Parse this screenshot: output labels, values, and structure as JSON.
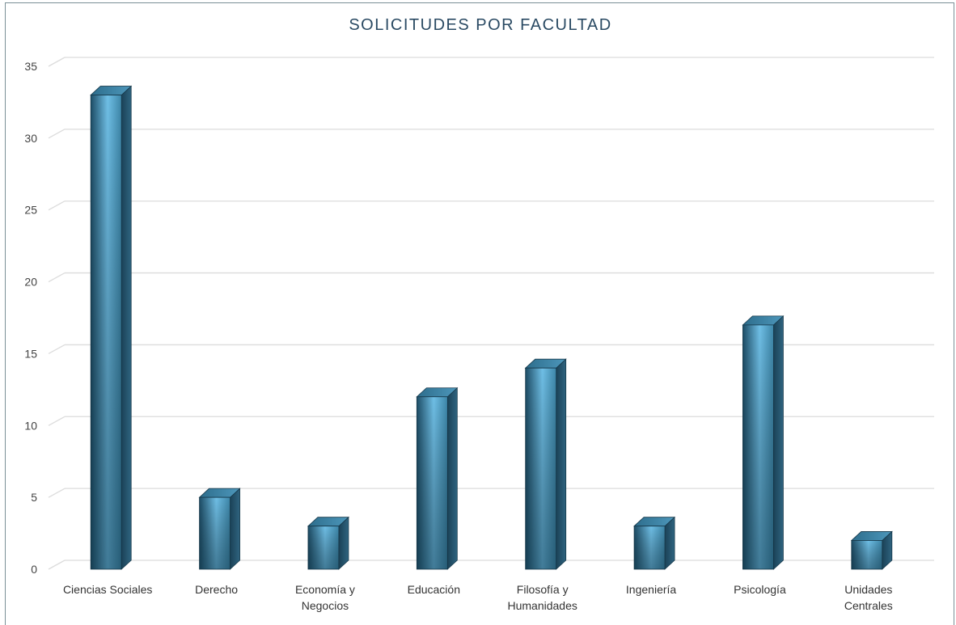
{
  "chart_data": {
    "type": "bar",
    "title": "SOLICITUDES POR FACULTAD",
    "categories": [
      [
        "Ciencias Sociales"
      ],
      [
        "Derecho"
      ],
      [
        "Economía y",
        "Negocios"
      ],
      [
        "Educación"
      ],
      [
        "Filosofía y",
        "Humanidades"
      ],
      [
        "Ingeniería"
      ],
      [
        "Psicología"
      ],
      [
        "Unidades",
        "Centrales"
      ]
    ],
    "values": [
      33,
      5,
      3,
      12,
      14,
      3,
      17,
      2
    ],
    "ylim": [
      0,
      35
    ],
    "yticks": [
      0,
      5,
      10,
      15,
      20,
      25,
      30,
      35
    ],
    "grid": true,
    "bar_color": "#2e6e8e"
  }
}
